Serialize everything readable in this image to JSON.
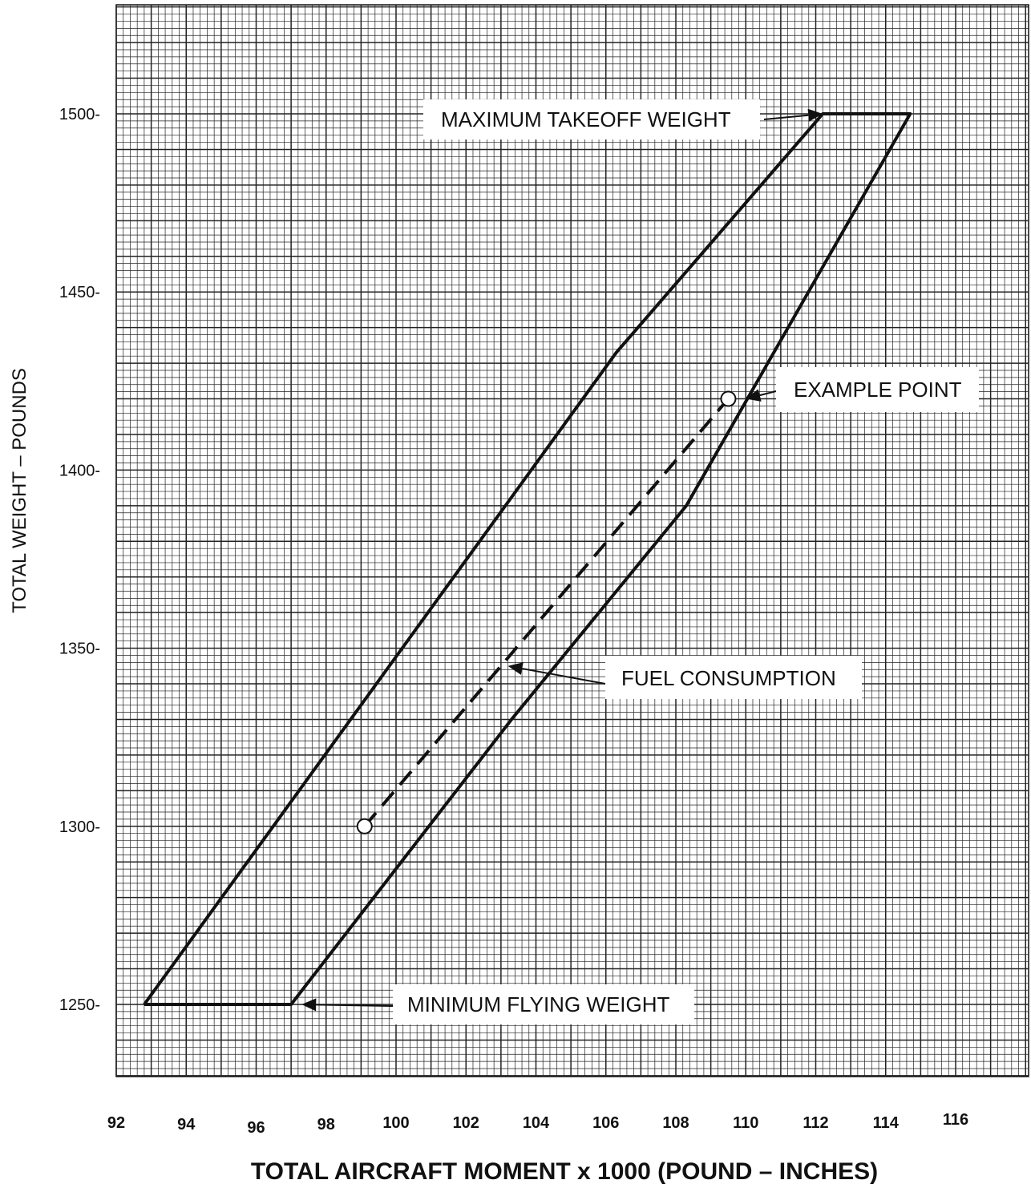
{
  "chart_data": {
    "type": "line",
    "xlabel": "TOTAL AIRCRAFT MOMENT x 1000 (POUND – INCHES)",
    "ylabel": "TOTAL WEIGHT – POUNDS",
    "xlim": [
      92,
      118
    ],
    "ylim": [
      1220,
      1530
    ],
    "x_ticks": [
      "92",
      "94",
      "96",
      "98",
      "100",
      "102",
      "104",
      "106",
      "108",
      "110",
      "112",
      "114",
      "116"
    ],
    "x_tick_values": [
      92,
      94,
      96,
      98,
      100,
      102,
      104,
      106,
      108,
      110,
      112,
      114,
      116
    ],
    "y_ticks": [
      "1250-",
      "1300-",
      "1350-",
      "1400-",
      "1450-",
      "1500-"
    ],
    "y_tick_values": [
      1250,
      1300,
      1350,
      1400,
      1450,
      1500
    ],
    "grid": true,
    "series": [
      {
        "style": "solid",
        "color": "#111111",
        "points": [
          [
            92.8,
            1250
          ],
          [
            106.3,
            1433
          ],
          [
            112.2,
            1500
          ],
          [
            114.7,
            1500
          ],
          [
            108.3,
            1390
          ],
          [
            103.3,
            1330
          ],
          [
            97.0,
            1250
          ],
          [
            92.8,
            1250
          ]
        ]
      },
      {
        "style": "dashed",
        "color": "#111111",
        "points": [
          [
            99.1,
            1300
          ],
          [
            109.5,
            1420
          ]
        ]
      }
    ],
    "markers": [
      {
        "x": 109.5,
        "y": 1420,
        "shape": "open-circle"
      },
      {
        "x": 99.1,
        "y": 1300,
        "shape": "open-circle"
      }
    ],
    "annotations": [
      {
        "text": "MAXIMUM TAKEOFF WEIGHT",
        "target": [
          112.2,
          1500
        ]
      },
      {
        "text": "EXAMPLE POINT",
        "target": [
          110.0,
          1420
        ]
      },
      {
        "text": "FUEL CONSUMPTION",
        "target": [
          103.2,
          1345
        ]
      },
      {
        "text": "MINIMUM FLYING WEIGHT",
        "target": [
          97.3,
          1250
        ]
      }
    ]
  }
}
